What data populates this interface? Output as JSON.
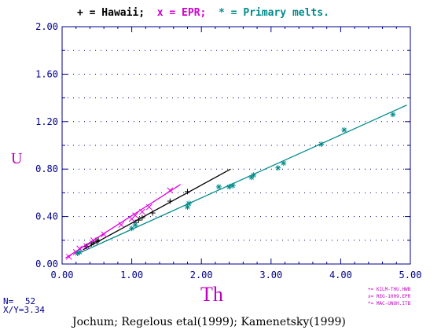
{
  "header": {
    "parts": [
      {
        "text": "+ = Hawaii; ",
        "color": "#000000"
      },
      {
        "text": "x = EPR; ",
        "color": "#d000d0"
      },
      {
        "text": "* = Primary melts.",
        "color": "#008b8b"
      }
    ]
  },
  "stats": {
    "n_label": "N=",
    "n_value": "52",
    "ratio_label": "X/Y=",
    "ratio_value": "3.34"
  },
  "footer": {
    "citation": "Jochum; Regelous etal(1999); Kamenetsky(1999)"
  },
  "small_legend": [
    "+= KILM-THU.HWB",
    "x= REG-1009.EPR",
    "*= MAC-UNOH.ITB"
  ],
  "colors": {
    "hawaii": "#000000",
    "epr": "#e000e0",
    "primary": "#008b8b",
    "axis": "#00008b",
    "label": "#c000c0"
  },
  "chart_data": {
    "type": "scatter",
    "title": "",
    "xlabel": "Th",
    "ylabel": "U",
    "xlim": [
      0,
      5
    ],
    "ylim": [
      0,
      2
    ],
    "xticks": [
      "0.00",
      "1.00",
      "2.00",
      "3.00",
      "4.00",
      "5.00"
    ],
    "yticks": [
      "0.00",
      "0.40",
      "0.80",
      "1.20",
      "1.60",
      "2.00"
    ],
    "grid": "dotted",
    "series": [
      {
        "name": "Hawaii",
        "marker": "+",
        "color": "#000000",
        "x": [
          0.35,
          0.42,
          0.45,
          0.5,
          0.52,
          1.05,
          1.1,
          1.15,
          1.3,
          1.55,
          1.8
        ],
        "y": [
          0.15,
          0.17,
          0.18,
          0.19,
          0.2,
          0.35,
          0.37,
          0.39,
          0.43,
          0.53,
          0.61
        ],
        "fit": {
          "x": [
            0.3,
            2.42
          ],
          "y": [
            0.12,
            0.8
          ]
        }
      },
      {
        "name": "EPR",
        "marker": "x",
        "color": "#e000e0",
        "x": [
          0.1,
          0.2,
          0.25,
          0.35,
          0.45,
          0.6,
          0.85,
          1.0,
          1.05,
          1.15,
          1.25,
          1.55
        ],
        "y": [
          0.06,
          0.1,
          0.13,
          0.15,
          0.2,
          0.25,
          0.33,
          0.38,
          0.41,
          0.44,
          0.48,
          0.62
        ],
        "fit": {
          "x": [
            0.05,
            1.7
          ],
          "y": [
            0.05,
            0.67
          ]
        }
      },
      {
        "name": "Primary melts",
        "marker": "*",
        "color": "#008b8b",
        "x": [
          0.22,
          0.25,
          1.0,
          1.05,
          1.8,
          1.82,
          2.25,
          2.4,
          2.45,
          2.72,
          2.75,
          3.1,
          3.18,
          3.72,
          4.05,
          4.75
        ],
        "y": [
          0.09,
          0.1,
          0.3,
          0.33,
          0.48,
          0.51,
          0.65,
          0.65,
          0.66,
          0.73,
          0.75,
          0.81,
          0.85,
          1.01,
          1.13,
          1.26
        ],
        "fit": {
          "x": [
            0.2,
            4.95
          ],
          "y": [
            0.08,
            1.34
          ]
        }
      }
    ]
  }
}
